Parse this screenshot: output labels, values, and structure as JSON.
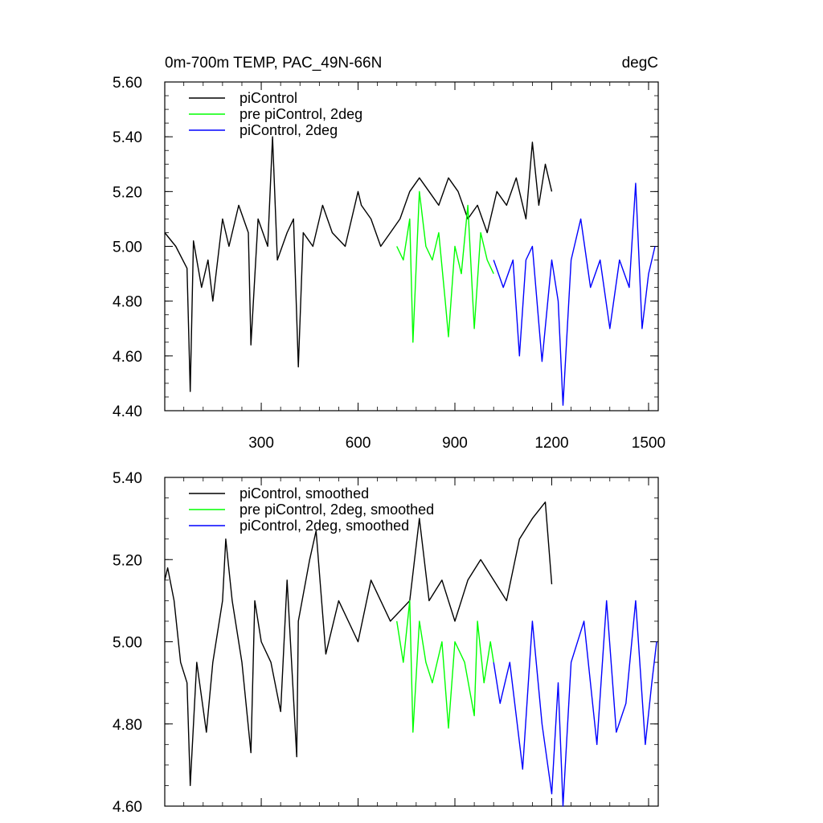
{
  "chart_data": [
    {
      "type": "line",
      "title": "0m-700m TEMP, PAC_49N-66N",
      "units": "degC",
      "xlabel": "",
      "ylabel": "",
      "xlim": [
        1,
        1530
      ],
      "ylim": [
        4.4,
        5.6
      ],
      "x_ticks": [
        300,
        600,
        900,
        1200,
        1500
      ],
      "x_tick_labels": [
        "300",
        "600",
        "900",
        "1200",
        "1500"
      ],
      "y_ticks": [
        4.4,
        4.6,
        4.8,
        5.0,
        5.2,
        5.4,
        5.6
      ],
      "y_tick_labels": [
        "4.40",
        "4.60",
        "4.80",
        "5.00",
        "5.20",
        "5.40",
        "5.60"
      ],
      "legend_position": "top-left",
      "series": [
        {
          "name": "piControl",
          "color": "#000000",
          "x": [
            1,
            35,
            70,
            80,
            90,
            115,
            135,
            150,
            180,
            200,
            230,
            260,
            268,
            290,
            320,
            335,
            350,
            380,
            400,
            415,
            430,
            460,
            490,
            520,
            560,
            600,
            610,
            640,
            670,
            700,
            730,
            760,
            790,
            820,
            850,
            880,
            910,
            940,
            970,
            1000,
            1030,
            1060,
            1090,
            1120,
            1140,
            1160,
            1180,
            1200
          ],
          "values": [
            5.05,
            5.0,
            4.92,
            4.47,
            5.02,
            4.85,
            4.95,
            4.8,
            5.1,
            5.0,
            5.15,
            5.05,
            4.64,
            5.1,
            5.0,
            5.4,
            4.95,
            5.05,
            5.1,
            4.56,
            5.05,
            5.0,
            5.15,
            5.05,
            5.0,
            5.2,
            5.15,
            5.1,
            5.0,
            5.05,
            5.1,
            5.2,
            5.25,
            5.2,
            5.15,
            5.25,
            5.2,
            5.1,
            5.15,
            5.05,
            5.2,
            5.15,
            5.25,
            5.1,
            5.38,
            5.15,
            5.3,
            5.2
          ]
        },
        {
          "name": "pre piControl, 2deg",
          "color": "#00ff00",
          "x": [
            720,
            740,
            760,
            770,
            790,
            810,
            830,
            850,
            870,
            880,
            900,
            920,
            940,
            960,
            980,
            1000,
            1020
          ],
          "values": [
            5.0,
            4.95,
            5.1,
            4.65,
            5.2,
            5.0,
            4.95,
            5.05,
            4.8,
            4.67,
            5.0,
            4.9,
            5.15,
            4.7,
            5.05,
            4.95,
            4.9
          ]
        },
        {
          "name": "piControl, 2deg",
          "color": "#0000ff",
          "x": [
            1020,
            1050,
            1080,
            1100,
            1120,
            1140,
            1170,
            1200,
            1220,
            1235,
            1260,
            1290,
            1320,
            1350,
            1380,
            1410,
            1440,
            1460,
            1480,
            1500,
            1520
          ],
          "values": [
            4.95,
            4.85,
            4.95,
            4.6,
            4.95,
            5.0,
            4.58,
            4.95,
            4.8,
            4.42,
            4.95,
            5.1,
            4.85,
            4.95,
            4.7,
            4.95,
            4.85,
            5.23,
            4.7,
            4.9,
            5.0
          ]
        }
      ]
    },
    {
      "type": "line",
      "title": "",
      "xlabel": "",
      "ylabel": "",
      "xlim": [
        1,
        1530
      ],
      "ylim": [
        4.6,
        5.4
      ],
      "x_ticks": [
        300,
        600,
        900,
        1200,
        1500
      ],
      "y_ticks": [
        4.6,
        4.8,
        5.0,
        5.2,
        5.4
      ],
      "y_tick_labels": [
        "4.60",
        "4.80",
        "5.00",
        "5.20",
        "5.40"
      ],
      "legend_position": "top-left",
      "series": [
        {
          "name": "piControl, smoothed",
          "color": "#000000",
          "x": [
            1,
            10,
            30,
            50,
            70,
            80,
            100,
            130,
            150,
            180,
            190,
            210,
            240,
            268,
            280,
            300,
            330,
            360,
            380,
            410,
            415,
            450,
            470,
            500,
            540,
            600,
            640,
            700,
            760,
            790,
            820,
            860,
            900,
            940,
            980,
            1020,
            1060,
            1100,
            1140,
            1180,
            1200
          ],
          "values": [
            5.15,
            5.18,
            5.1,
            4.95,
            4.9,
            4.65,
            4.95,
            4.78,
            4.95,
            5.1,
            5.25,
            5.1,
            4.95,
            4.73,
            5.1,
            5.0,
            4.95,
            4.83,
            5.15,
            4.72,
            5.05,
            5.2,
            5.27,
            4.97,
            5.1,
            5.0,
            5.15,
            5.05,
            5.1,
            5.3,
            5.1,
            5.15,
            5.05,
            5.15,
            5.2,
            5.15,
            5.1,
            5.25,
            5.3,
            5.34,
            5.14
          ]
        },
        {
          "name": "pre piControl, 2deg, smoothed",
          "color": "#00ff00",
          "x": [
            720,
            740,
            760,
            770,
            790,
            810,
            830,
            860,
            880,
            900,
            930,
            960,
            970,
            990,
            1010,
            1020
          ],
          "values": [
            5.05,
            4.95,
            5.1,
            4.78,
            5.05,
            4.95,
            4.9,
            5.0,
            4.79,
            5.0,
            4.95,
            4.82,
            5.05,
            4.9,
            5.0,
            4.95
          ]
        },
        {
          "name": "piControl, 2deg, smoothed",
          "color": "#0000ff",
          "x": [
            1020,
            1040,
            1070,
            1110,
            1140,
            1170,
            1200,
            1220,
            1235,
            1260,
            1300,
            1340,
            1370,
            1400,
            1430,
            1460,
            1490,
            1510,
            1525
          ],
          "values": [
            4.95,
            4.85,
            4.95,
            4.69,
            5.05,
            4.8,
            4.63,
            4.9,
            4.6,
            4.95,
            5.05,
            4.75,
            5.1,
            4.78,
            4.85,
            5.1,
            4.75,
            4.9,
            5.0
          ]
        }
      ]
    }
  ]
}
